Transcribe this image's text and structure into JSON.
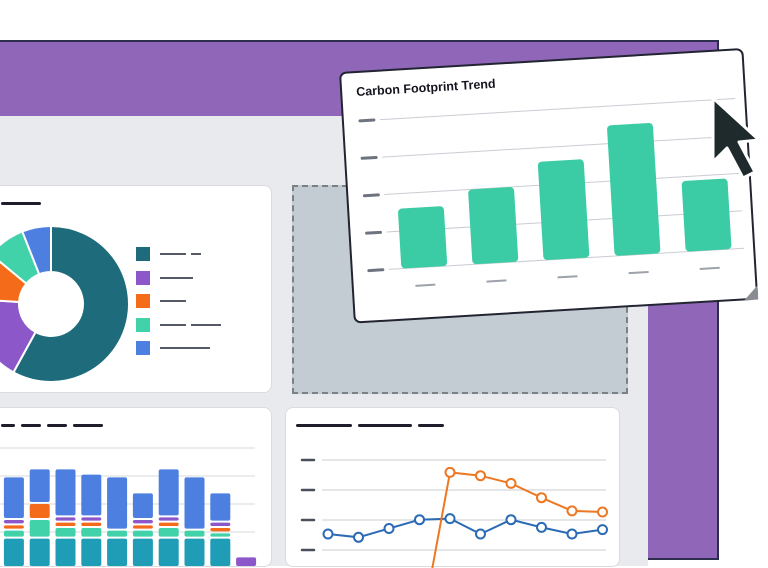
{
  "popup": {
    "title": "Carbon Footprint Trend"
  },
  "icons": {
    "cursor": "mouse-pointer-icon",
    "legend_swatch": "color-square-icon"
  },
  "colors": {
    "window_frame": "#9067b8",
    "dashboard_bg": "#e9eaee",
    "bar_green": "#3ccca5",
    "donut_teal": "#1e6b7c",
    "donut_purple": "#8c57c9",
    "donut_orange": "#f46c1a",
    "donut_mint": "#41d2aa",
    "donut_blue": "#4c7fe0",
    "line_blue": "#2b6ab4",
    "line_orange": "#ee7722"
  },
  "donut": {
    "slices": [
      {
        "label": "",
        "value": 58,
        "color": "#1e6b7c"
      },
      {
        "label": "",
        "value": 18,
        "color": "#8c57c9"
      },
      {
        "label": "",
        "value": 10,
        "color": "#f46c1a"
      },
      {
        "label": "",
        "value": 8,
        "color": "#41d2aa"
      },
      {
        "label": "",
        "value": 6,
        "color": "#4c7fe0"
      }
    ]
  },
  "chart_data": [
    {
      "type": "bar",
      "title": "Carbon Footprint Trend",
      "categories": [
        "",
        "",
        "",
        "",
        ""
      ],
      "values": [
        2.8,
        3.5,
        4.6,
        6.1,
        3.3
      ],
      "ylim": [
        0,
        7
      ],
      "grid": true,
      "color": "#3ccca5"
    },
    {
      "type": "pie",
      "title": "",
      "values": [
        58,
        18,
        10,
        8,
        6
      ],
      "legend": "right"
    },
    {
      "type": "bar",
      "title": "",
      "stacked": true,
      "categories": [
        "",
        "",
        "",
        "",
        "",
        "",
        "",
        "",
        "",
        ""
      ],
      "series": [
        {
          "color": "#1f9cb6",
          "values": [
            22,
            22,
            22,
            22,
            22,
            22,
            22,
            22,
            22,
            0
          ]
        },
        {
          "color": "#41d2aa",
          "values": [
            6,
            14,
            8,
            8,
            6,
            6,
            8,
            6,
            4,
            0
          ]
        },
        {
          "color": "#f46c1a",
          "values": [
            4,
            12,
            4,
            4,
            0,
            4,
            4,
            0,
            4,
            0
          ]
        },
        {
          "color": "#8c57c9",
          "values": [
            4,
            0,
            4,
            4,
            0,
            4,
            4,
            0,
            4,
            8
          ]
        },
        {
          "color": "#4c7fe0",
          "values": [
            32,
            26,
            36,
            32,
            40,
            20,
            36,
            40,
            22,
            0
          ]
        }
      ],
      "ylim": [
        0,
        90
      ]
    },
    {
      "type": "line",
      "title": "",
      "x": [
        1,
        2,
        3,
        4,
        5,
        6,
        7,
        8,
        9,
        10
      ],
      "series": [
        {
          "color": "#2b6ab4",
          "values": [
            2.0,
            1.7,
            2.5,
            3.3,
            3.4,
            2.0,
            3.3,
            2.6,
            2.0,
            2.4
          ]
        },
        {
          "color": "#ee7722",
          "values": [
            null,
            null,
            null,
            null,
            7.6,
            7.3,
            6.6,
            5.3,
            4.1,
            4.0
          ]
        }
      ],
      "grid": true
    }
  ]
}
